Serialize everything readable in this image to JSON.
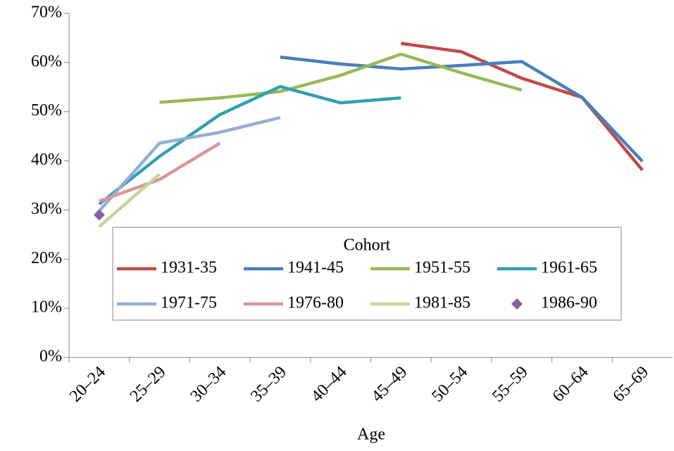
{
  "chart_data": {
    "type": "line",
    "x_label": "Age",
    "legend_title": "Cohort",
    "legend_position": "lower center",
    "categories": [
      "20–24",
      "25–29",
      "30–34",
      "35–39",
      "40–44",
      "45–49",
      "50–54",
      "55–59",
      "60–64",
      "65–69"
    ],
    "ylim": [
      0,
      70
    ],
    "yticks": [
      {
        "value": 0,
        "label": "0%"
      },
      {
        "value": 10,
        "label": "10%"
      },
      {
        "value": 20,
        "label": "20%"
      },
      {
        "value": 30,
        "label": "30%"
      },
      {
        "value": 40,
        "label": "40%"
      },
      {
        "value": 50,
        "label": "50%"
      },
      {
        "value": 60,
        "label": "60%"
      },
      {
        "value": 70,
        "label": "70%"
      }
    ],
    "series": [
      {
        "name": "1931-35",
        "color": "#be4b48",
        "values": [
          null,
          null,
          null,
          null,
          null,
          63.9,
          62.2,
          56.8,
          52.9,
          38.1
        ]
      },
      {
        "name": "1941-45",
        "color": "#4a7ebb",
        "values": [
          null,
          null,
          null,
          61.1,
          59.7,
          58.7,
          59.4,
          60.2,
          52.9,
          39.9
        ]
      },
      {
        "name": "1951-55",
        "color": "#98b954",
        "values": [
          null,
          51.9,
          52.8,
          54.1,
          57.4,
          61.7,
          57.9,
          54.4,
          null,
          null
        ]
      },
      {
        "name": "1961-65",
        "color": "#31a0b2",
        "values": [
          31.2,
          40.9,
          49.4,
          55.1,
          51.8,
          52.8,
          null,
          null,
          null,
          null
        ]
      },
      {
        "name": "1971-75",
        "color": "#95add6",
        "values": [
          29.8,
          43.6,
          45.8,
          48.8,
          null,
          null,
          null,
          null,
          null,
          null
        ]
      },
      {
        "name": "1976-80",
        "color": "#d99594",
        "values": [
          31.8,
          36.2,
          43.6,
          null,
          null,
          null,
          null,
          null,
          null,
          null
        ]
      },
      {
        "name": "1981-85",
        "color": "#c3d69b",
        "values": [
          26.6,
          37.3,
          null,
          null,
          null,
          null,
          null,
          null,
          null,
          null
        ]
      },
      {
        "name": "1986-90",
        "color": "#8064a2",
        "marker": "diamond",
        "values": [
          29.0,
          null,
          null,
          null,
          null,
          null,
          null,
          null,
          null,
          null
        ]
      }
    ]
  }
}
